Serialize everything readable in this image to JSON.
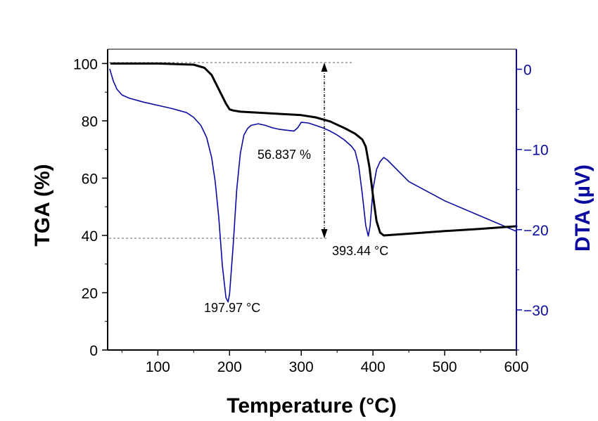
{
  "chart_data": {
    "type": "line",
    "x_axis": {
      "label": "Temperature (°C)",
      "range": [
        30,
        600
      ],
      "ticks": [
        100,
        200,
        300,
        400,
        500,
        600
      ]
    },
    "y_left_axis": {
      "label": "TGA (%)",
      "range": [
        0,
        105
      ],
      "ticks": [
        0,
        20,
        40,
        60,
        80,
        100
      ]
    },
    "y_right_axis": {
      "label": "DTA (µV)",
      "range": [
        -35,
        2.5
      ],
      "ticks": [
        0,
        -10,
        -20,
        -30
      ]
    },
    "series": [
      {
        "name": "TGA",
        "axis": "left",
        "color": "#000000",
        "x": [
          35,
          60,
          100,
          150,
          165,
          175,
          185,
          195,
          200,
          205,
          215,
          250,
          300,
          320,
          340,
          360,
          375,
          385,
          390,
          395,
          400,
          405,
          410,
          415,
          450,
          500,
          550,
          600
        ],
        "y": [
          100,
          100,
          100,
          99.6,
          98.5,
          96,
          91,
          86,
          84,
          83.6,
          83.2,
          82.7,
          82,
          81.2,
          79.8,
          77.5,
          75.5,
          73.5,
          71,
          64,
          54,
          45,
          41,
          40,
          40.6,
          41.5,
          42.3,
          43.2
        ]
      },
      {
        "name": "DTA",
        "axis": "right",
        "color": "#0a0aa0",
        "x": [
          33,
          38,
          43,
          50,
          60,
          80,
          100,
          120,
          140,
          150,
          160,
          168,
          175,
          180,
          185,
          190,
          195,
          197.97,
          200,
          205,
          210,
          215,
          220,
          225,
          230,
          240,
          250,
          260,
          270,
          280,
          290,
          295,
          300,
          310,
          320,
          330,
          340,
          350,
          360,
          370,
          375,
          380,
          385,
          390,
          393.44,
          396,
          400,
          405,
          410,
          415,
          420,
          430,
          450,
          500,
          550,
          600
        ],
        "y": [
          0,
          -1.5,
          -2.5,
          -3.2,
          -3.6,
          -4.1,
          -4.5,
          -4.9,
          -5.4,
          -6,
          -7,
          -8.5,
          -11,
          -14,
          -18.5,
          -24.5,
          -28.5,
          -29,
          -28,
          -22,
          -15,
          -10.5,
          -8.2,
          -7.4,
          -7,
          -6.8,
          -7,
          -7.3,
          -7.5,
          -7.6,
          -7.7,
          -7.3,
          -6.6,
          -6.7,
          -7,
          -7.3,
          -7.7,
          -8.2,
          -8.8,
          -9.6,
          -10.2,
          -12,
          -15.5,
          -19.5,
          -20.8,
          -19.5,
          -15,
          -12.5,
          -11.5,
          -11,
          -11.3,
          -12.2,
          -14,
          -16.4,
          -18.3,
          -20.2
        ]
      }
    ],
    "annotations": {
      "mass_loss": "56.837 %",
      "peak_low": "197.97 °C",
      "peak_high": "393.44 °C"
    }
  }
}
